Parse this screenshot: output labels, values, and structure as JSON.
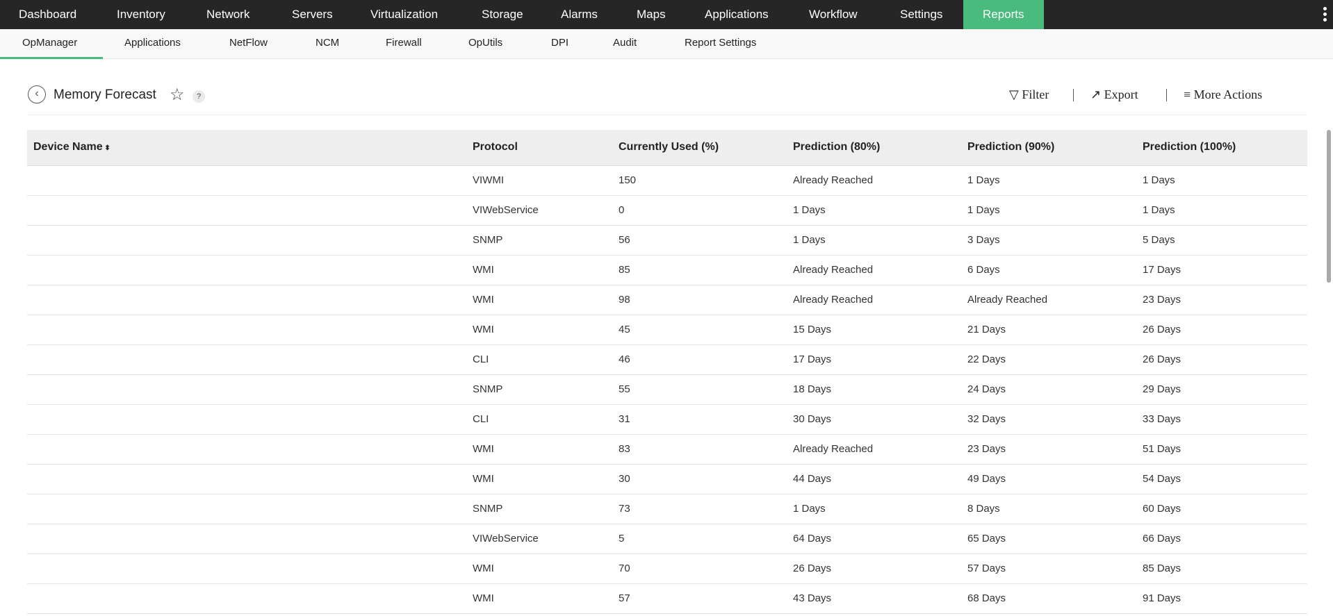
{
  "topnav": {
    "items": [
      "Dashboard",
      "Inventory",
      "Network",
      "Servers",
      "Virtualization",
      "Storage",
      "Alarms",
      "Maps",
      "Applications",
      "Workflow",
      "Settings",
      "Reports"
    ],
    "active": "Reports",
    "accent": "#48bb7d"
  },
  "subnav": {
    "items": [
      "OpManager",
      "Applications",
      "NetFlow",
      "NCM",
      "Firewall",
      "OpUtils",
      "DPI",
      "Audit",
      "Report Settings"
    ],
    "active": "OpManager"
  },
  "page": {
    "title": "Memory Forecast",
    "help": "?",
    "actions": {
      "filter": "Filter",
      "export": "Export",
      "more": "More Actions"
    }
  },
  "table": {
    "headers": [
      "Device Name",
      "Protocol",
      "Currently Used (%)",
      "Prediction (80%)",
      "Prediction (90%)",
      "Prediction (100%)"
    ],
    "sort": "Device Name",
    "rows": [
      [
        "",
        "VIWMI",
        "150",
        "Already Reached",
        "1 Days",
        "1 Days"
      ],
      [
        "",
        "VIWebService",
        "0",
        "1 Days",
        "1 Days",
        "1 Days"
      ],
      [
        "",
        "SNMP",
        "56",
        "1 Days",
        "3 Days",
        "5 Days"
      ],
      [
        "",
        "WMI",
        "85",
        "Already Reached",
        "6 Days",
        "17 Days"
      ],
      [
        "",
        "WMI",
        "98",
        "Already Reached",
        "Already Reached",
        "23 Days"
      ],
      [
        "",
        "WMI",
        "45",
        "15 Days",
        "21 Days",
        "26 Days"
      ],
      [
        "",
        "CLI",
        "46",
        "17 Days",
        "22 Days",
        "26 Days"
      ],
      [
        "",
        "SNMP",
        "55",
        "18 Days",
        "24 Days",
        "29 Days"
      ],
      [
        "",
        "CLI",
        "31",
        "30 Days",
        "32 Days",
        "33 Days"
      ],
      [
        "",
        "WMI",
        "83",
        "Already Reached",
        "23 Days",
        "51 Days"
      ],
      [
        "",
        "WMI",
        "30",
        "44 Days",
        "49 Days",
        "54 Days"
      ],
      [
        "",
        "SNMP",
        "73",
        "1 Days",
        "8 Days",
        "60 Days"
      ],
      [
        "",
        "VIWebService",
        "5",
        "64 Days",
        "65 Days",
        "66 Days"
      ],
      [
        "",
        "WMI",
        "70",
        "26 Days",
        "57 Days",
        "85 Days"
      ],
      [
        "",
        "WMI",
        "57",
        "43 Days",
        "68 Days",
        "91 Days"
      ]
    ]
  }
}
